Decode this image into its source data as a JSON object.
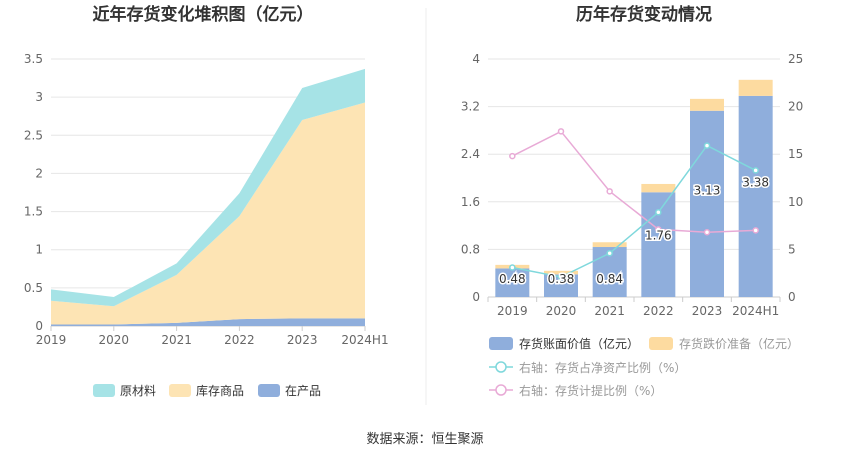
{
  "source_text": "数据来源：恒生聚源",
  "colors": {
    "raw": "#a6e3e6",
    "finished": "#fde4b4",
    "wip": "#8faedc",
    "bar": "#8faedc",
    "bar_impair": "#fddba0",
    "line_ratio": "#7fd8dc",
    "line_provision": "#e8aad6",
    "grid": "#e6e6e6",
    "axis": "#cccccc"
  },
  "chart_data": [
    {
      "type": "area",
      "title": "近年存货变化堆积图（亿元）",
      "categories": [
        "2019",
        "2020",
        "2021",
        "2022",
        "2023",
        "2024H1"
      ],
      "ylim": [
        0,
        3.5
      ],
      "yticks": [
        "0",
        "0.5",
        "1",
        "1.5",
        "2",
        "2.5",
        "3",
        "3.5"
      ],
      "grid": true,
      "legend_position": "bottom",
      "series": [
        {
          "name": "在产品",
          "values": [
            0.02,
            0.02,
            0.04,
            0.09,
            0.1,
            0.1
          ],
          "color_key": "wip"
        },
        {
          "name": "库存商品",
          "values": [
            0.31,
            0.24,
            0.63,
            1.35,
            2.6,
            2.83
          ],
          "color_key": "finished"
        },
        {
          "name": "原材料",
          "values": [
            0.15,
            0.12,
            0.15,
            0.3,
            0.42,
            0.44
          ],
          "color_key": "raw"
        }
      ],
      "legend": [
        "原材料",
        "库存商品",
        "在产品"
      ]
    },
    {
      "type": "bar",
      "title": "历年存货变动情况",
      "categories": [
        "2019",
        "2020",
        "2021",
        "2022",
        "2023",
        "2024H1"
      ],
      "ylim_left": [
        0,
        4
      ],
      "yticks_left": [
        "0",
        "0.8",
        "1.6",
        "2.4",
        "3.2",
        "4"
      ],
      "ylim_right": [
        0,
        25
      ],
      "yticks_right": [
        "0",
        "5",
        "10",
        "15",
        "20",
        "25"
      ],
      "grid": true,
      "legend_position": "bottom",
      "bar_values": [
        0.48,
        0.38,
        0.84,
        1.76,
        3.13,
        3.38
      ],
      "bar_labels": [
        "0.48",
        "0.38",
        "0.84",
        "1.76",
        "3.13",
        "3.38"
      ],
      "impairment_values": [
        0.06,
        0.06,
        0.08,
        0.14,
        0.2,
        0.27
      ],
      "ratio_values": [
        3.1,
        2.1,
        4.6,
        8.9,
        15.9,
        13.3
      ],
      "provision_values": [
        14.8,
        17.4,
        11.1,
        7.1,
        6.8,
        7.0
      ],
      "legend": [
        "存货账面价值（亿元）",
        "存货跌价准备（亿元）",
        "右轴：存货占净资产比例（%）",
        "右轴：存货计提比例（%）"
      ]
    }
  ]
}
